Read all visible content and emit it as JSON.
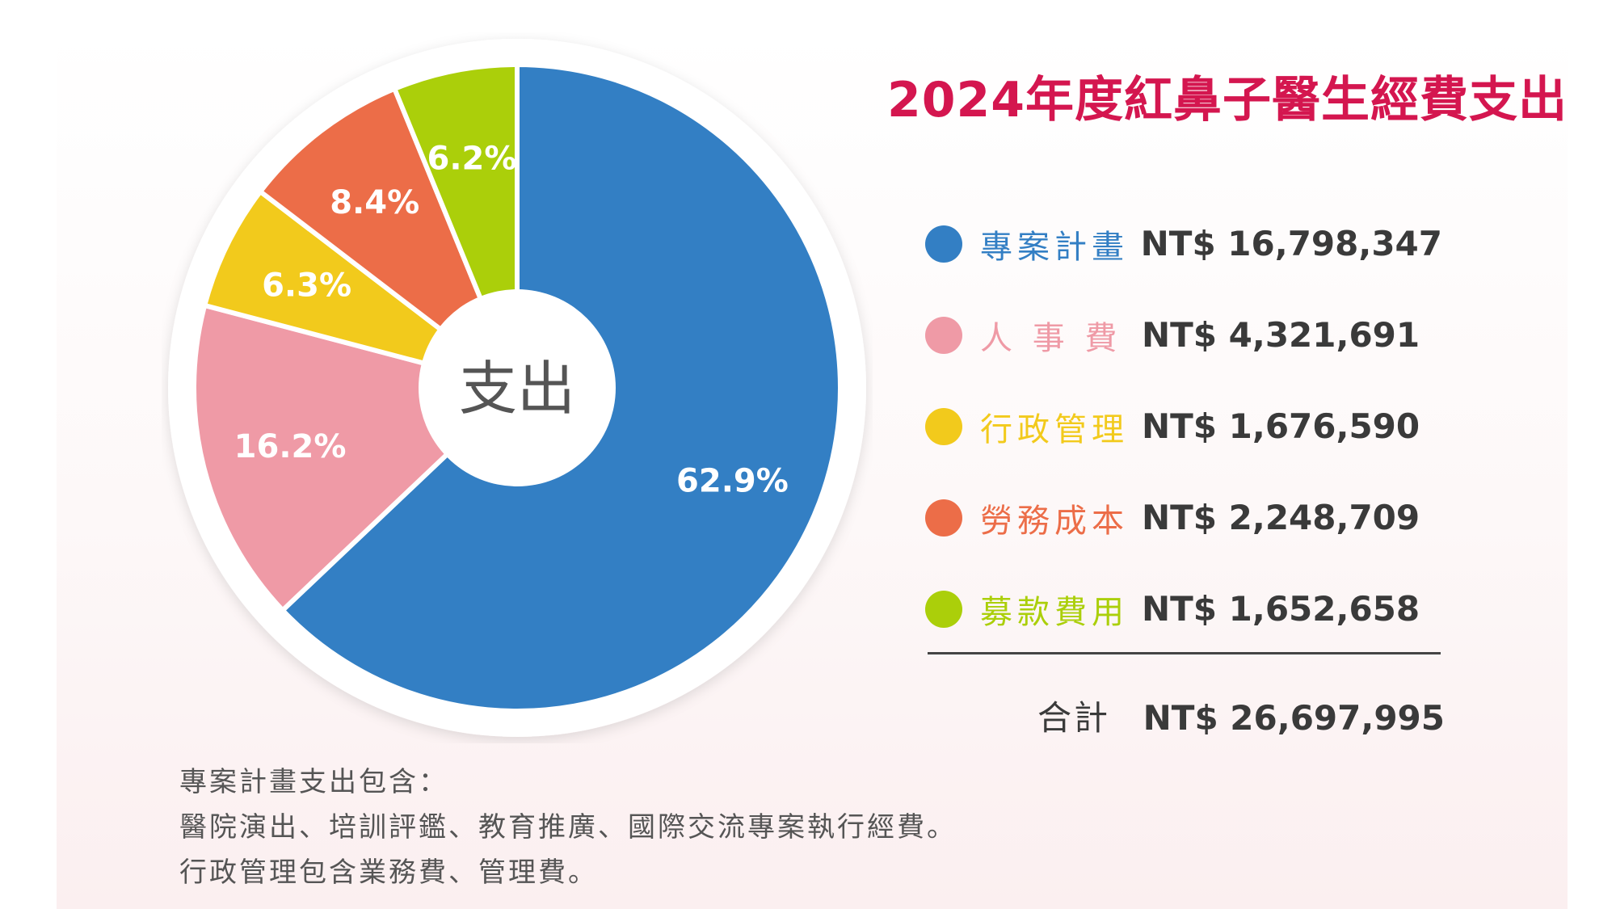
{
  "title": "2024年度紅鼻子醫生經費支出",
  "center_label": "支出",
  "chart_data": {
    "type": "pie",
    "title": "2024年度紅鼻子醫生經費支出",
    "donut_center_label": "支出",
    "slices": [
      {
        "label": "專案計畫",
        "amount": "NT$ 16,798,347",
        "value": 16798347,
        "percent_label": "62.9%",
        "percent": 62.9,
        "color": "#337fc4"
      },
      {
        "label": "人 事 費",
        "amount": "NT$ 4,321,691",
        "value": 4321691,
        "percent_label": "16.2%",
        "percent": 16.2,
        "color": "#ef9aa6"
      },
      {
        "label": "行政管理",
        "amount": "NT$ 1,676,590",
        "value": 1676590,
        "percent_label": "6.3%",
        "percent": 6.3,
        "color": "#f2ca1c"
      },
      {
        "label": "勞務成本",
        "amount": "NT$ 2,248,709",
        "value": 2248709,
        "percent_label": "8.4%",
        "percent": 8.4,
        "color": "#ec6d48"
      },
      {
        "label": "募款費用",
        "amount": "NT$ 1,652,658",
        "value": 1652658,
        "percent_label": "6.2%",
        "percent": 6.2,
        "color": "#abcf0a"
      }
    ],
    "total_label": "合計",
    "total_amount": "NT$ 26,697,995",
    "legend_position": "right"
  },
  "legend_label_colors": [
    "#337fc4",
    "#ef9aa6",
    "#f2ca1c",
    "#ec6d48",
    "#abcf0a"
  ],
  "notes": [
    "專案計畫支出包含：",
    "醫院演出、培訓評鑑、教育推廣、國際交流專案執行經費。",
    "行政管理包含業務費、管理費。"
  ]
}
